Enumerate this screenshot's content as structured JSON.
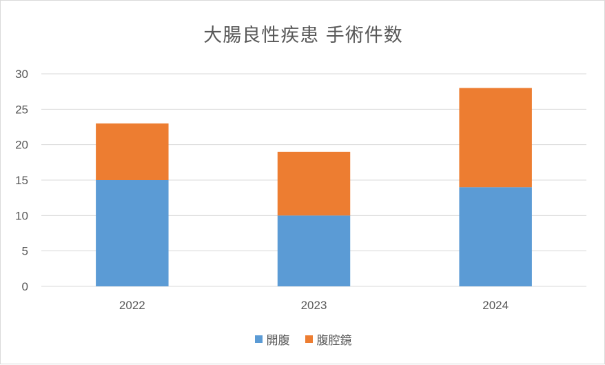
{
  "chart_data": {
    "type": "bar",
    "stacked": true,
    "title": "大腸良性疾患 手術件数",
    "categories": [
      "2022",
      "2023",
      "2024"
    ],
    "series": [
      {
        "name": "開腹",
        "values": [
          15,
          10,
          14
        ],
        "color": "#5b9bd5"
      },
      {
        "name": "腹腔鏡",
        "values": [
          8,
          9,
          14
        ],
        "color": "#ed7d31"
      }
    ],
    "ylim": [
      0,
      30
    ],
    "yticks": [
      "0",
      "5",
      "10",
      "15",
      "20",
      "25",
      "30"
    ],
    "grid": true,
    "legend_position": "bottom"
  }
}
